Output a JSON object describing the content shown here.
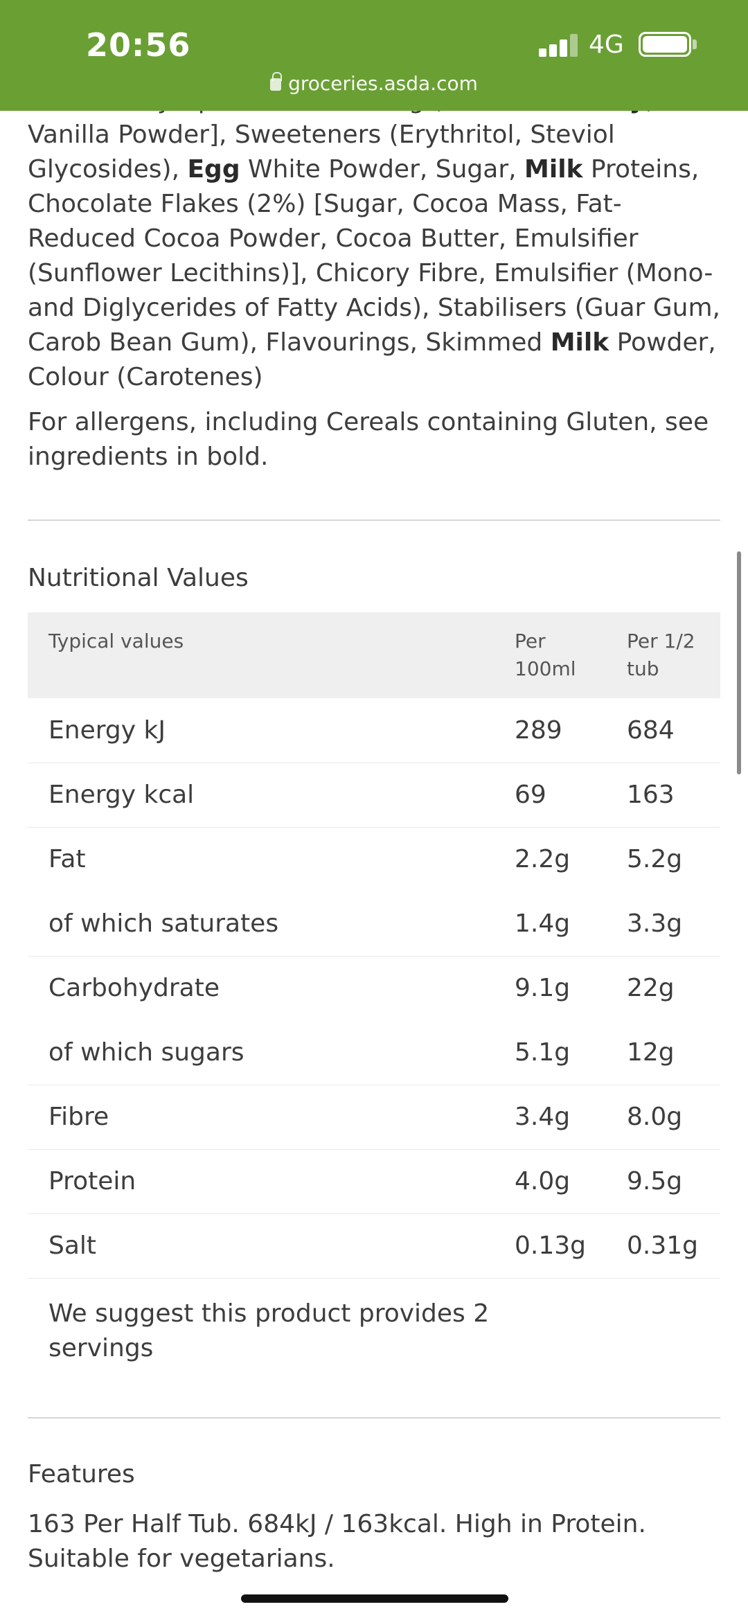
{
  "status_bar": {
    "time": "20:56",
    "network": "4G",
    "url": "groceries.asda.com",
    "background": "#6a9f34"
  },
  "ingredients": {
    "segments": [
      {
        "text": "Fructose Syrup, Salt, Flavouring (contains ",
        "bold": false
      },
      {
        "text": "Barley",
        "bold": true
      },
      {
        "text": "), Vanilla Powder], Sweeteners (Erythritol, Steviol Glycosides), ",
        "bold": false
      },
      {
        "text": "Egg",
        "bold": true
      },
      {
        "text": " White Powder, Sugar, ",
        "bold": false
      },
      {
        "text": "Milk",
        "bold": true
      },
      {
        "text": " Proteins, Chocolate Flakes (2%) [Sugar, Cocoa Mass, Fat-Reduced Cocoa Powder, Cocoa Butter, Emulsifier (Sunflower Lecithins)], Chicory Fibre, Emulsifier (Mono- and Diglycerides of Fatty Acids), Stabilisers (Guar Gum, Carob Bean Gum), Flavourings, Skimmed ",
        "bold": false
      },
      {
        "text": "Milk",
        "bold": true
      },
      {
        "text": " Powder, Colour (Carotenes)",
        "bold": false
      }
    ]
  },
  "allergens_text": "For allergens, including Cereals containing Gluten, see ingredients in bold.",
  "nutrition": {
    "title": "Nutritional Values",
    "headers": [
      "Typical values",
      "Per 100ml",
      "Per 1/2 tub"
    ],
    "rows": [
      {
        "name": "Energy kJ",
        "per100": "289",
        "perHalf": "684"
      },
      {
        "name": "Energy kcal",
        "per100": "69",
        "perHalf": "163"
      },
      {
        "name": "Fat",
        "per100": "2.2g",
        "perHalf": "5.2g"
      },
      {
        "name": "of which saturates",
        "per100": "1.4g",
        "perHalf": "3.3g"
      },
      {
        "name": "Carbohydrate",
        "per100": "9.1g",
        "perHalf": "22g"
      },
      {
        "name": "of which sugars",
        "per100": "5.1g",
        "perHalf": "12g"
      },
      {
        "name": "Fibre",
        "per100": "3.4g",
        "perHalf": "8.0g"
      },
      {
        "name": "Protein",
        "per100": "4.0g",
        "perHalf": "9.5g"
      },
      {
        "name": "Salt",
        "per100": "0.13g",
        "perHalf": "0.31g"
      }
    ],
    "note": "We suggest this product provides 2 servings"
  },
  "features": {
    "title": "Features",
    "text": "163 Per Half Tub. 684kJ / 163kcal. High in Protein. Suitable for vegetarians."
  }
}
